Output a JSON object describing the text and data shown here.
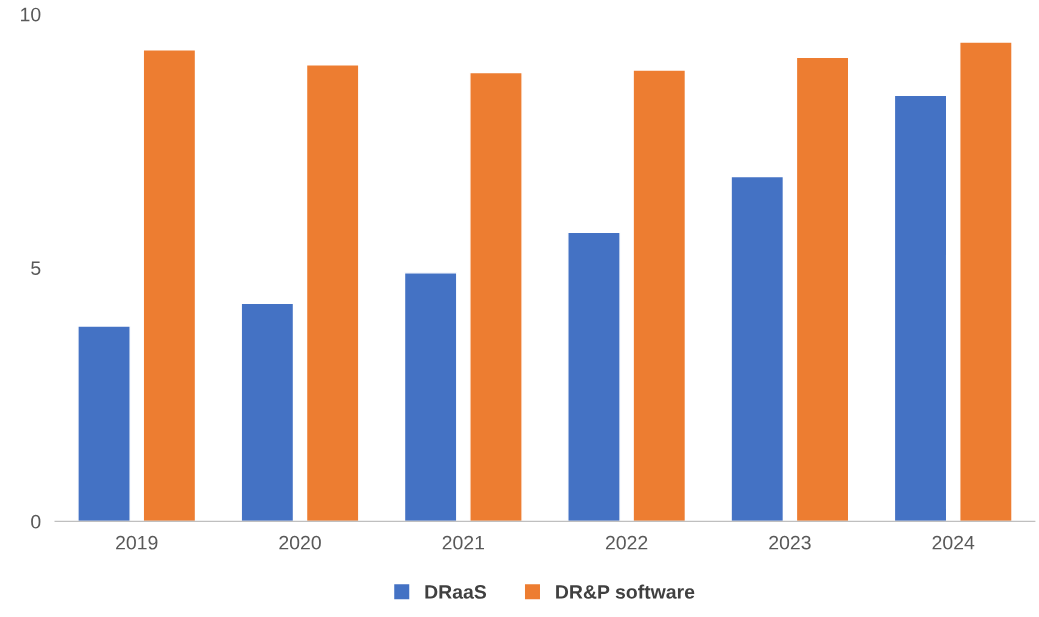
{
  "chart_data": {
    "type": "bar",
    "categories": [
      "2019",
      "2020",
      "2021",
      "2022",
      "2023",
      "2024"
    ],
    "series": [
      {
        "name": "DRaaS",
        "color": "#4472c4",
        "values": [
          3.85,
          4.3,
          4.9,
          5.7,
          6.8,
          8.4
        ]
      },
      {
        "name": "DR&P software",
        "color": "#ed7d31",
        "values": [
          9.3,
          9.0,
          8.85,
          8.9,
          9.15,
          9.45
        ]
      }
    ],
    "ylim": [
      0,
      10
    ],
    "yticks": [
      0,
      5,
      10
    ],
    "grid": false,
    "legend": "bottom"
  }
}
